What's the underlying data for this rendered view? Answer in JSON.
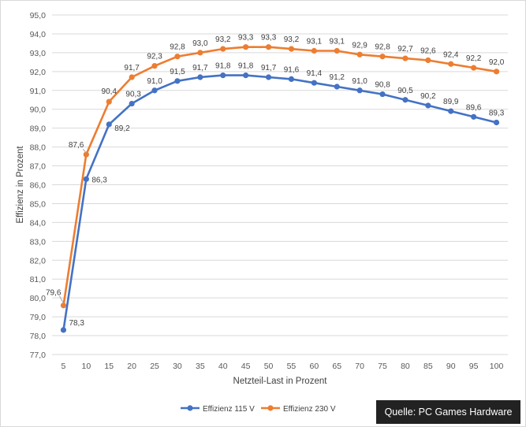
{
  "source_label": "Quelle: PC Games Hardware",
  "chart_data": {
    "type": "line",
    "xlabel": "Netzteil-Last in Prozent",
    "ylabel": "Effizienz in Prozent",
    "ylim": [
      77.0,
      95.0
    ],
    "ytick_step": 1.0,
    "grid": "horizontal",
    "legend_position": "bottom",
    "x": [
      5,
      10,
      15,
      20,
      25,
      30,
      35,
      40,
      45,
      50,
      55,
      60,
      65,
      70,
      75,
      80,
      85,
      90,
      95,
      100
    ],
    "series": [
      {
        "name": "Effizienz 115 V",
        "color": "#4472c4",
        "values": [
          78.3,
          86.3,
          89.2,
          90.3,
          91.0,
          91.5,
          91.7,
          91.8,
          91.8,
          91.7,
          91.6,
          91.4,
          91.2,
          91.0,
          90.8,
          90.5,
          90.2,
          89.9,
          89.6,
          89.3
        ]
      },
      {
        "name": "Effizienz 230 V",
        "color": "#ed7d31",
        "values": [
          79.6,
          87.6,
          90.4,
          91.7,
          92.3,
          92.8,
          93.0,
          93.2,
          93.3,
          93.3,
          93.2,
          93.1,
          93.1,
          92.9,
          92.8,
          92.7,
          92.6,
          92.4,
          92.2,
          92.0
        ]
      }
    ]
  }
}
